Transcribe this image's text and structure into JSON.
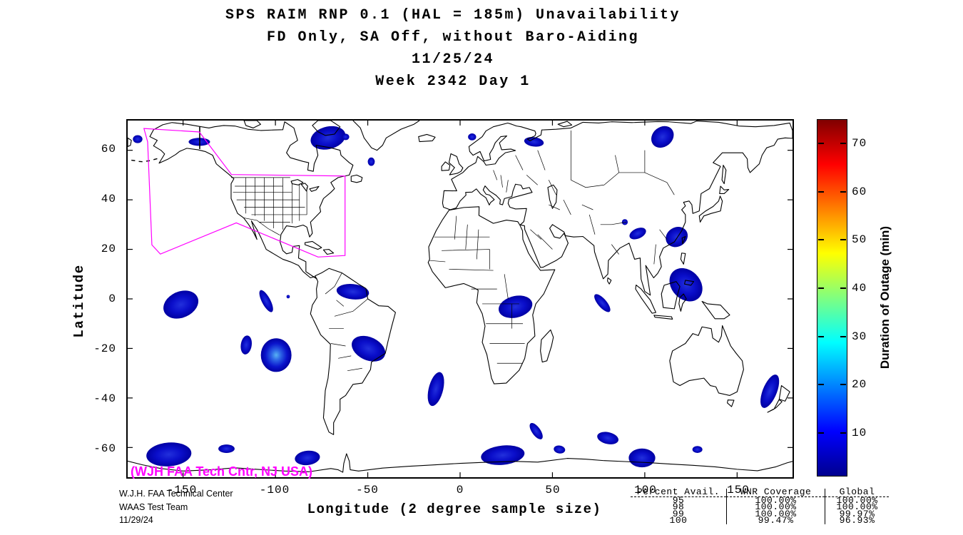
{
  "figure": {
    "title_lines": [
      "SPS RAIM RNP 0.1 (HAL = 185m) Unavailability",
      "FD Only, SA Off, without Baro-Aiding",
      "11/25/24",
      "Week 2342 Day 1"
    ],
    "watermark": "(WJH FAA Tech Cntr, NJ USA)",
    "credit_lines": [
      "W.J.H. FAA Technical Center",
      "WAAS Test Team",
      "11/29/24"
    ],
    "colors": {
      "watermark": "#FF00FF",
      "coverage_boundary": "#FF00FF",
      "coastline": "#000000",
      "outage_deep": "#0000A2",
      "outage_mid": "#2230DC",
      "outage_bright": "#58B2F2",
      "colorbar_top": "#800000",
      "colorbar_bottom": "#00008F"
    }
  },
  "chart_data": {
    "type": "heatmap",
    "title": "SPS RAIM RNP 0.1 (HAL = 185m) Unavailability — FD Only, SA Off, without Baro-Aiding — 11/25/24 — Week 2342 Day 1",
    "xlabel": "Longitude (2 degree sample size)",
    "ylabel": "Latitude",
    "xlim": [
      -180,
      180
    ],
    "ylim": [
      -72,
      72
    ],
    "xticks": [
      -150,
      -100,
      -50,
      0,
      50,
      100,
      150
    ],
    "yticks": [
      60,
      40,
      20,
      0,
      -20,
      -40,
      -60
    ],
    "grid": false,
    "colorbar": {
      "label": "Duration of Outage (min)",
      "range": [
        1,
        75
      ],
      "ticks": [
        10,
        20,
        30,
        40,
        50,
        60,
        70
      ],
      "colormap": "jet"
    },
    "waas_coverage_boundary": [
      [
        -171.2,
        68.8
      ],
      [
        -141.2,
        67.4
      ],
      [
        -123.8,
        50.2
      ],
      [
        -62.3,
        49.6
      ],
      [
        -62.3,
        17.5
      ],
      [
        -76.9,
        16.9
      ],
      [
        -121.2,
        30.7
      ],
      [
        -162.3,
        18.1
      ],
      [
        -166.9,
        21.8
      ],
      [
        -169.2,
        63.4
      ]
    ],
    "outage_regions": [
      {
        "lon": -141.2,
        "lat": 63.4,
        "w": 11.6,
        "h": 3.2,
        "rot": 0,
        "intensity": "low"
      },
      {
        "lon": -174.6,
        "lat": 64.5,
        "w": 5.2,
        "h": 3.2,
        "rot": 0,
        "intensity": "low"
      },
      {
        "lon": -71.5,
        "lat": 65.0,
        "w": 19.0,
        "h": 9.2,
        "rot": -8,
        "intensity": "low"
      },
      {
        "lon": -62.0,
        "lat": 65.4,
        "w": 4.0,
        "h": 2.6,
        "rot": 0,
        "intensity": "low"
      },
      {
        "lon": -48.1,
        "lat": 55.4,
        "w": 3.8,
        "h": 3.4,
        "rot": 0,
        "intensity": "low"
      },
      {
        "lon": 6.5,
        "lat": 65.4,
        "w": 4.4,
        "h": 2.8,
        "rot": 0,
        "intensity": "low"
      },
      {
        "lon": 40.0,
        "lat": 63.4,
        "w": 10.6,
        "h": 3.8,
        "rot": 5,
        "intensity": "low"
      },
      {
        "lon": 109.6,
        "lat": 65.4,
        "w": 12.4,
        "h": 8.4,
        "rot": -15,
        "intensity": "low"
      },
      {
        "lon": 89.2,
        "lat": 31.0,
        "w": 3.2,
        "h": 2.4,
        "rot": 0,
        "intensity": "low"
      },
      {
        "lon": 96.2,
        "lat": 26.4,
        "w": 9.2,
        "h": 4.2,
        "rot": -15,
        "intensity": "low"
      },
      {
        "lon": 117.3,
        "lat": 25.0,
        "w": 12.0,
        "h": 8.0,
        "rot": -10,
        "intensity": "low"
      },
      {
        "lon": 122.3,
        "lat": 5.7,
        "w": 18.4,
        "h": 12.6,
        "rot": 20,
        "intensity": "low"
      },
      {
        "lon": 77.0,
        "lat": -1.7,
        "w": 10.6,
        "h": 4.0,
        "rot": 38,
        "intensity": "low"
      },
      {
        "lon": 30.0,
        "lat": -3.2,
        "w": 18.4,
        "h": 8.8,
        "rot": -8,
        "intensity": "low"
      },
      {
        "lon": -151.2,
        "lat": -2.3,
        "w": 19.2,
        "h": 10.8,
        "rot": -12,
        "intensity": "low"
      },
      {
        "lon": -105.0,
        "lat": -0.9,
        "w": 10.8,
        "h": 4.2,
        "rot": 52,
        "intensity": "low"
      },
      {
        "lon": -93.1,
        "lat": 0.9,
        "w": 1.8,
        "h": 1.4,
        "rot": 0,
        "intensity": "low"
      },
      {
        "lon": -58.1,
        "lat": 2.9,
        "w": 17.6,
        "h": 6.2,
        "rot": 4,
        "intensity": "low"
      },
      {
        "lon": -115.8,
        "lat": -18.6,
        "w": 5.8,
        "h": 7.8,
        "rot": 18,
        "intensity": "low"
      },
      {
        "lon": -99.6,
        "lat": -22.7,
        "w": 16.6,
        "h": 13.6,
        "rot": 0,
        "intensity": "bright"
      },
      {
        "lon": -49.6,
        "lat": -20.1,
        "w": 18.6,
        "h": 9.6,
        "rot": 14,
        "intensity": "low"
      },
      {
        "lon": -13.1,
        "lat": -36.4,
        "w": 7.6,
        "h": 14.4,
        "rot": 22,
        "intensity": "low"
      },
      {
        "lon": 41.2,
        "lat": -53.4,
        "w": 8.8,
        "h": 4.0,
        "rot": 42,
        "intensity": "low"
      },
      {
        "lon": 53.8,
        "lat": -60.8,
        "w": 6.2,
        "h": 3.2,
        "rot": 5,
        "intensity": "low"
      },
      {
        "lon": 23.1,
        "lat": -63.1,
        "w": 23.6,
        "h": 7.8,
        "rot": -4,
        "intensity": "low"
      },
      {
        "lon": 80.0,
        "lat": -56.2,
        "w": 11.6,
        "h": 4.8,
        "rot": 8,
        "intensity": "low"
      },
      {
        "lon": 98.5,
        "lat": -64.2,
        "w": 14.4,
        "h": 7.6,
        "rot": 0,
        "intensity": "low"
      },
      {
        "lon": 128.5,
        "lat": -60.8,
        "w": 5.4,
        "h": 2.8,
        "rot": 0,
        "intensity": "low"
      },
      {
        "lon": 167.7,
        "lat": -37.3,
        "w": 7.2,
        "h": 15.2,
        "rot": 32,
        "intensity": "low"
      },
      {
        "lon": -157.7,
        "lat": -62.8,
        "w": 24.4,
        "h": 9.6,
        "rot": -3,
        "intensity": "low"
      },
      {
        "lon": -126.5,
        "lat": -60.5,
        "w": 8.8,
        "h": 3.4,
        "rot": 0,
        "intensity": "low"
      },
      {
        "lon": -82.7,
        "lat": -64.2,
        "w": 13.6,
        "h": 5.8,
        "rot": -4,
        "intensity": "low"
      }
    ],
    "availability_table": {
      "columns": [
        "Percent Avail.",
        "WNR Coverage",
        "Global"
      ],
      "rows": [
        [
          "95",
          "100.00%",
          "100.00%"
        ],
        [
          "98",
          "100.00%",
          "100.00%"
        ],
        [
          "99",
          "100.00%",
          "99.97%"
        ],
        [
          "100",
          "99.47%",
          "96.93%"
        ]
      ]
    }
  }
}
